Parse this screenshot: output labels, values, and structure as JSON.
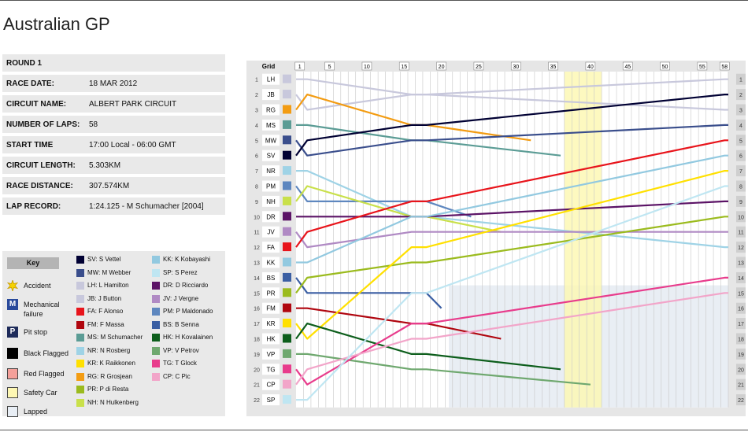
{
  "title": "Australian GP",
  "info": [
    {
      "label": "ROUND 1",
      "value": ""
    },
    {
      "label": "RACE DATE:",
      "value": "18 MAR 2012"
    },
    {
      "label": "CIRCUIT NAME:",
      "value": "ALBERT PARK CIRCUIT"
    },
    {
      "label": "NUMBER OF LAPS:",
      "value": "58"
    },
    {
      "label": "START TIME",
      "value": "17:00 Local - 06:00 GMT"
    },
    {
      "label": "CIRCUIT LENGTH:",
      "value": "5.303KM"
    },
    {
      "label": "RACE DISTANCE:",
      "value": "307.574KM"
    },
    {
      "label": "LAP RECORD:",
      "value": "1:24.125 - M Schumacher [2004]"
    }
  ],
  "key": {
    "header": "Key",
    "symbols": [
      {
        "icon": "accident-icon",
        "label": "Accident"
      },
      {
        "icon": "mechanical-icon",
        "label": "Mechanical failure",
        "letter": "M"
      },
      {
        "icon": "pit-stop-icon",
        "label": "Pit stop",
        "letter": "P"
      },
      {
        "icon": "black-flag-icon",
        "label": "Black Flagged"
      },
      {
        "icon": "red-flag-icon",
        "label": "Red Flagged"
      },
      {
        "icon": "safety-car-icon",
        "label": "Safety Car"
      },
      {
        "icon": "lapped-icon",
        "label": "Lapped"
      }
    ]
  },
  "chart_data": {
    "type": "line",
    "title": "",
    "x_label": "Grid",
    "x_ticks": [
      1,
      5,
      10,
      15,
      20,
      25,
      30,
      35,
      40,
      45,
      50,
      55,
      58
    ],
    "total_laps": 58,
    "positions": 22,
    "safety_car_laps": [
      37,
      38,
      39,
      40,
      41
    ],
    "drivers": [
      {
        "code": "LH",
        "legend": "LH: L Hamilton",
        "color": "#c8c8dc",
        "grid": 1,
        "finish": 3
      },
      {
        "code": "JB",
        "legend": "JB: J Button",
        "color": "#c8c8dc",
        "grid": 2,
        "finish": 1
      },
      {
        "code": "RG",
        "legend": "RG: R Grosjean",
        "color": "#f39c12",
        "grid": 3,
        "finish": null
      },
      {
        "code": "MS",
        "legend": "MS: M Schumacher",
        "color": "#5b9c95",
        "grid": 4,
        "finish": null
      },
      {
        "code": "MW",
        "legend": "MW: M Webber",
        "color": "#3a4e8c",
        "grid": 5,
        "finish": 4
      },
      {
        "code": "SV",
        "legend": "SV: S Vettel",
        "color": "#000033",
        "grid": 6,
        "finish": 2
      },
      {
        "code": "NR",
        "legend": "NR: N Rosberg",
        "color": "#9fd3e6",
        "grid": 7,
        "finish": 12
      },
      {
        "code": "PM",
        "legend": "PM: P Maldonado",
        "color": "#5e87bf",
        "grid": 8,
        "finish": null
      },
      {
        "code": "NH",
        "legend": "NH: N Hulkenberg",
        "color": "#c9e04a",
        "grid": 9,
        "finish": null
      },
      {
        "code": "DR",
        "legend": "DR: D Ricciardo",
        "color": "#5b1366",
        "grid": 10,
        "finish": 9
      },
      {
        "code": "JV",
        "legend": "JV: J Vergne",
        "color": "#b08ac4",
        "grid": 11,
        "finish": 11
      },
      {
        "code": "FA",
        "legend": "FA: F Alonso",
        "color": "#e8141b",
        "grid": 12,
        "finish": 5
      },
      {
        "code": "KK",
        "legend": "KK: K Kobayashi",
        "color": "#92c9e0",
        "grid": 13,
        "finish": 6
      },
      {
        "code": "BS",
        "legend": "BS: B Senna",
        "color": "#3b5fa3",
        "grid": 14,
        "finish": null
      },
      {
        "code": "PR",
        "legend": "PR: P di Resta",
        "color": "#9bbb1e",
        "grid": 15,
        "finish": 10
      },
      {
        "code": "FM",
        "legend": "FM: F Massa",
        "color": "#b0060f",
        "grid": 16,
        "finish": null
      },
      {
        "code": "KR",
        "legend": "KR: K Raikkonen",
        "color": "#ffe000",
        "grid": 17,
        "finish": 7
      },
      {
        "code": "HK",
        "legend": "HK: H Kovalainen",
        "color": "#0d5e1c",
        "grid": 18,
        "finish": null
      },
      {
        "code": "VP",
        "legend": "VP: V Petrov",
        "color": "#6fa86f",
        "grid": 19,
        "finish": null
      },
      {
        "code": "TG",
        "legend": "TG: T Glock",
        "color": "#e83c8c",
        "grid": 20,
        "finish": 14
      },
      {
        "code": "CP",
        "legend": "CP: C Pic",
        "color": "#f2a5c9",
        "grid": 21,
        "finish": 15
      },
      {
        "code": "SP",
        "legend": "SP: S Perez",
        "color": "#bfe6f2",
        "grid": 22,
        "finish": 8
      }
    ]
  }
}
